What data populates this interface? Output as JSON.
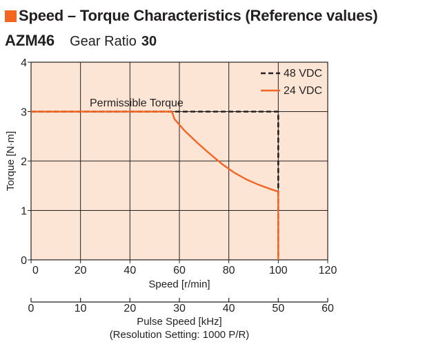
{
  "header": {
    "title": "Speed – Torque Characteristics (Reference values)",
    "model": "AZM46",
    "gear_ratio_label": "Gear Ratio",
    "gear_ratio_value": "30"
  },
  "colors": {
    "accent": "#f26522",
    "plot_background": "#fde5d5",
    "series_48vdc": "#231f20",
    "series_24vdc": "#f26522"
  },
  "chart_data": {
    "type": "line",
    "title": "",
    "xlabel": "Speed [r/min]",
    "ylabel": "Torque [N·m]",
    "xlim": [
      0,
      120
    ],
    "ylim": [
      0,
      4
    ],
    "x_ticks": [
      "0",
      "20",
      "40",
      "60",
      "80",
      "100",
      "120"
    ],
    "y_ticks": [
      "0",
      "1",
      "2",
      "3",
      "4"
    ],
    "grid": true,
    "legend": "top-right",
    "annotation": "Permissible Torque",
    "series": [
      {
        "name": "48 VDC",
        "style": "dashed",
        "color": "#231f20",
        "points": [
          [
            0,
            3
          ],
          [
            100,
            3
          ],
          [
            100,
            0
          ]
        ]
      },
      {
        "name": "24 VDC",
        "style": "solid",
        "color": "#f26522",
        "points": [
          [
            0,
            3
          ],
          [
            57,
            3
          ],
          [
            58,
            2.85
          ],
          [
            62,
            2.62
          ],
          [
            67,
            2.38
          ],
          [
            72,
            2.16
          ],
          [
            77,
            1.95
          ],
          [
            82,
            1.77
          ],
          [
            87,
            1.63
          ],
          [
            92,
            1.52
          ],
          [
            97,
            1.43
          ],
          [
            100,
            1.38
          ],
          [
            100,
            0
          ]
        ]
      }
    ],
    "secondary_axis": {
      "label": "Pulse Speed [kHz]",
      "sublabel": "(Resolution Setting: 1000 P/R)",
      "range": [
        0,
        60
      ],
      "ticks": [
        "0",
        "10",
        "20",
        "30",
        "40",
        "50",
        "60"
      ]
    }
  }
}
